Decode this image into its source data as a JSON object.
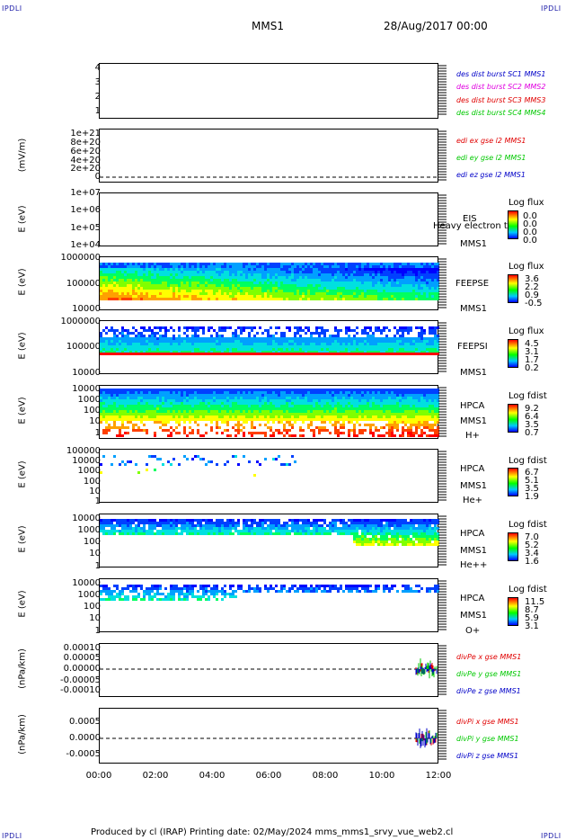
{
  "header": {
    "corner_label": "IPDLI",
    "spacecraft": "MMS1",
    "datetime": "28/Aug/2017 00:00"
  },
  "footer": {
    "text": "Produced by cl (IRAP)   Printing date: 02/May/2024   mms_mms1_srvy_vue_web2.cl"
  },
  "chart_data": [
    {
      "type": "line",
      "panel": "des-dist-burst",
      "yticks": [
        "4",
        "3",
        "2",
        "1"
      ],
      "ylabel": "",
      "legend": [
        {
          "text": "des dist burst SC1 MMS1",
          "color": "#0000c8"
        },
        {
          "text": "des dist burst SC2 MMS2",
          "color": "#e000e0"
        },
        {
          "text": "des dist burst SC3 MMS3",
          "color": "#e00000"
        },
        {
          "text": "des dist burst SC4 MMS4",
          "color": "#00c800"
        }
      ]
    },
    {
      "type": "line",
      "panel": "edi-e-gse",
      "ylabel": "(mV/m)",
      "yticks": [
        "1e+21",
        "8e+20",
        "6e+20",
        "4e+20",
        "2e+20",
        "0"
      ],
      "legend": [
        {
          "text": "edi ex gse l2 MMS1",
          "color": "#e00000"
        },
        {
          "text": "edi ey gse l2 MMS1",
          "color": "#00c800"
        },
        {
          "text": "edi ez gse l2 MMS1",
          "color": "#0000c8"
        }
      ]
    },
    {
      "type": "heatmap",
      "panel": "eis",
      "ylabel": "E (eV)",
      "yticks": [
        "1e+07",
        "1e+06",
        "1e+05",
        "1e+04"
      ],
      "side": [
        "EIS",
        "MMS1"
      ],
      "overlay_text": "Heavy electron to",
      "colorbar": {
        "title": "Log flux",
        "values": [
          "0.0",
          "0.0",
          "0.0",
          "0.0"
        ]
      }
    },
    {
      "type": "heatmap",
      "panel": "feeps-e",
      "ylabel": "E (eV)",
      "yticks": [
        "1000000",
        "100000",
        "10000"
      ],
      "side": [
        "FEEPSE",
        "MMS1"
      ],
      "colorbar": {
        "title": "Log flux",
        "values": [
          "3.6",
          "2.2",
          "0.9",
          "-0.5"
        ]
      }
    },
    {
      "type": "heatmap",
      "panel": "feeps-i",
      "ylabel": "E (eV)",
      "yticks": [
        "1000000",
        "100000",
        "10000"
      ],
      "side": [
        "FEEPSI",
        "MMS1"
      ],
      "colorbar": {
        "title": "Log flux",
        "values": [
          "4.5",
          "3.1",
          "1.7",
          "0.2"
        ]
      }
    },
    {
      "type": "heatmap",
      "panel": "hpca-h",
      "ylabel": "E (eV)",
      "yticks": [
        "10000",
        "1000",
        "100",
        "10",
        "1"
      ],
      "side": [
        "HPCA",
        "MMS1"
      ],
      "species": "H+",
      "colorbar": {
        "title": "Log fdist",
        "values": [
          "9.2",
          "6.4",
          "3.5",
          "0.7"
        ]
      }
    },
    {
      "type": "heatmap",
      "panel": "hpca-he",
      "ylabel": "E (eV)",
      "yticks": [
        "100000",
        "10000",
        "1000",
        "100",
        "10",
        "1"
      ],
      "side": [
        "HPCA",
        "MMS1"
      ],
      "species": "He+",
      "colorbar": {
        "title": "Log fdist",
        "values": [
          "6.7",
          "5.1",
          "3.5",
          "1.9"
        ]
      }
    },
    {
      "type": "heatmap",
      "panel": "hpca-he2",
      "ylabel": "E (eV)",
      "yticks": [
        "10000",
        "1000",
        "100",
        "10",
        "1"
      ],
      "side": [
        "HPCA",
        "MMS1"
      ],
      "species": "He++",
      "colorbar": {
        "title": "Log fdist",
        "values": [
          "7.0",
          "5.2",
          "3.4",
          "1.6"
        ]
      }
    },
    {
      "type": "heatmap",
      "panel": "hpca-o",
      "ylabel": "E (eV)",
      "yticks": [
        "10000",
        "1000",
        "100",
        "10",
        "1"
      ],
      "side": [
        "HPCA",
        "MMS1"
      ],
      "species": "O+",
      "colorbar": {
        "title": "Log fdist",
        "values": [
          "11.5",
          "8.7",
          "5.9",
          "3.1"
        ]
      }
    },
    {
      "type": "line",
      "panel": "divpe",
      "ylabel": "(nPa/km)",
      "yticks": [
        "0.00010",
        "0.00005",
        "0.00000",
        "-0.00005",
        "-0.00010"
      ],
      "legend": [
        {
          "text": "divPe x gse MMS1",
          "color": "#e00000"
        },
        {
          "text": "divPe y gse MMS1",
          "color": "#00c800"
        },
        {
          "text": "divPe z gse MMS1",
          "color": "#0000c8"
        }
      ]
    },
    {
      "type": "line",
      "panel": "divpi",
      "ylabel": "(nPa/km)",
      "yticks": [
        "0.0005",
        "0.0000",
        "-0.0005"
      ],
      "legend": [
        {
          "text": "divPi x gse MMS1",
          "color": "#e00000"
        },
        {
          "text": "divPi y gse MMS1",
          "color": "#00c800"
        },
        {
          "text": "divPi z gse MMS1",
          "color": "#0000c8"
        }
      ]
    }
  ],
  "xaxis": {
    "ticks": [
      "00:00",
      "02:00",
      "04:00",
      "06:00",
      "08:00",
      "10:00",
      "12:00"
    ]
  },
  "colors": {
    "corner": "#1a1aa8"
  }
}
